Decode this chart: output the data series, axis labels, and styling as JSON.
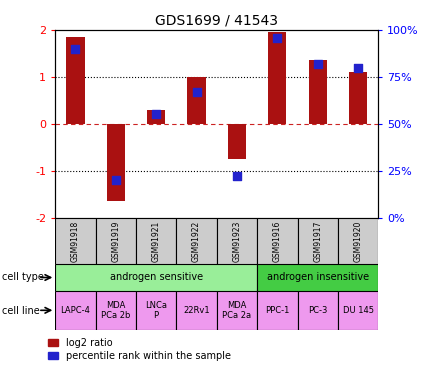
{
  "title": "GDS1699 / 41543",
  "samples": [
    "GSM91918",
    "GSM91919",
    "GSM91921",
    "GSM91922",
    "GSM91923",
    "GSM91916",
    "GSM91917",
    "GSM91920"
  ],
  "log2_ratio": [
    1.85,
    -1.65,
    0.3,
    1.0,
    -0.75,
    1.95,
    1.35,
    1.1
  ],
  "percentile_rank": [
    90,
    20,
    55,
    67,
    22,
    96,
    82,
    80
  ],
  "ylim": [
    -2,
    2
  ],
  "yticks_left": [
    -2,
    -1,
    0,
    1,
    2
  ],
  "bar_color": "#aa1111",
  "dot_color": "#2222cc",
  "dotted_line_color_black": "#000000",
  "dotted_line_color_red": "#cc2222",
  "cell_types": [
    {
      "label": "androgen sensitive",
      "start": 0,
      "end": 5,
      "color": "#99ee99"
    },
    {
      "label": "androgen insensitive",
      "start": 5,
      "end": 8,
      "color": "#44cc44"
    }
  ],
  "cell_lines": [
    {
      "label": "LAPC-4",
      "start": 0,
      "end": 1
    },
    {
      "label": "MDA\nPCa 2b",
      "start": 1,
      "end": 2
    },
    {
      "label": "LNCa\nP",
      "start": 2,
      "end": 3
    },
    {
      "label": "22Rv1",
      "start": 3,
      "end": 4
    },
    {
      "label": "MDA\nPCa 2a",
      "start": 4,
      "end": 5
    },
    {
      "label": "PPC-1",
      "start": 5,
      "end": 6
    },
    {
      "label": "PC-3",
      "start": 6,
      "end": 7
    },
    {
      "label": "DU 145",
      "start": 7,
      "end": 8
    }
  ],
  "cell_line_color": "#ee99ee",
  "sample_box_color": "#cccccc",
  "legend_red_label": "log2 ratio",
  "legend_blue_label": "percentile rank within the sample",
  "left_label_celltype": "cell type",
  "left_label_cellline": "cell line"
}
